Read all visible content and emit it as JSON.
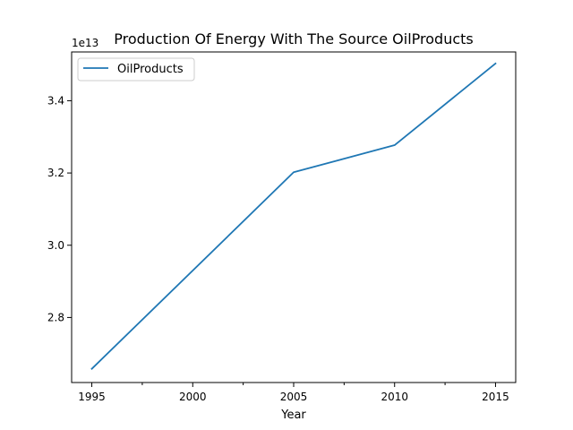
{
  "chart_data": {
    "type": "line",
    "title": "Production Of Energy With The Source OilProducts",
    "xlabel": "Year",
    "ylabel": "",
    "y_offset_label": "1e13",
    "x_ticks": [
      "1995",
      "2000",
      "2005",
      "2010",
      "2015"
    ],
    "x_tick_values": [
      1995,
      2000,
      2005,
      2010,
      2015
    ],
    "x_minor_tick_values": [
      1997.5,
      2002.5,
      2007.5,
      2012.5
    ],
    "y_ticks": [
      "2.8",
      "3.0",
      "3.2",
      "3.4"
    ],
    "y_tick_values": [
      2.8,
      3.0,
      3.2,
      3.4
    ],
    "xlim": [
      1994.0,
      2016.0
    ],
    "ylim": [
      2.62,
      3.535
    ],
    "grid": false,
    "legend_position": "upper-left",
    "series": [
      {
        "name": "OilProducts",
        "color": "#1f77b4",
        "x": [
          1995,
          2005,
          2010,
          2015
        ],
        "y": [
          2.658,
          3.202,
          3.277,
          3.503
        ]
      }
    ]
  }
}
